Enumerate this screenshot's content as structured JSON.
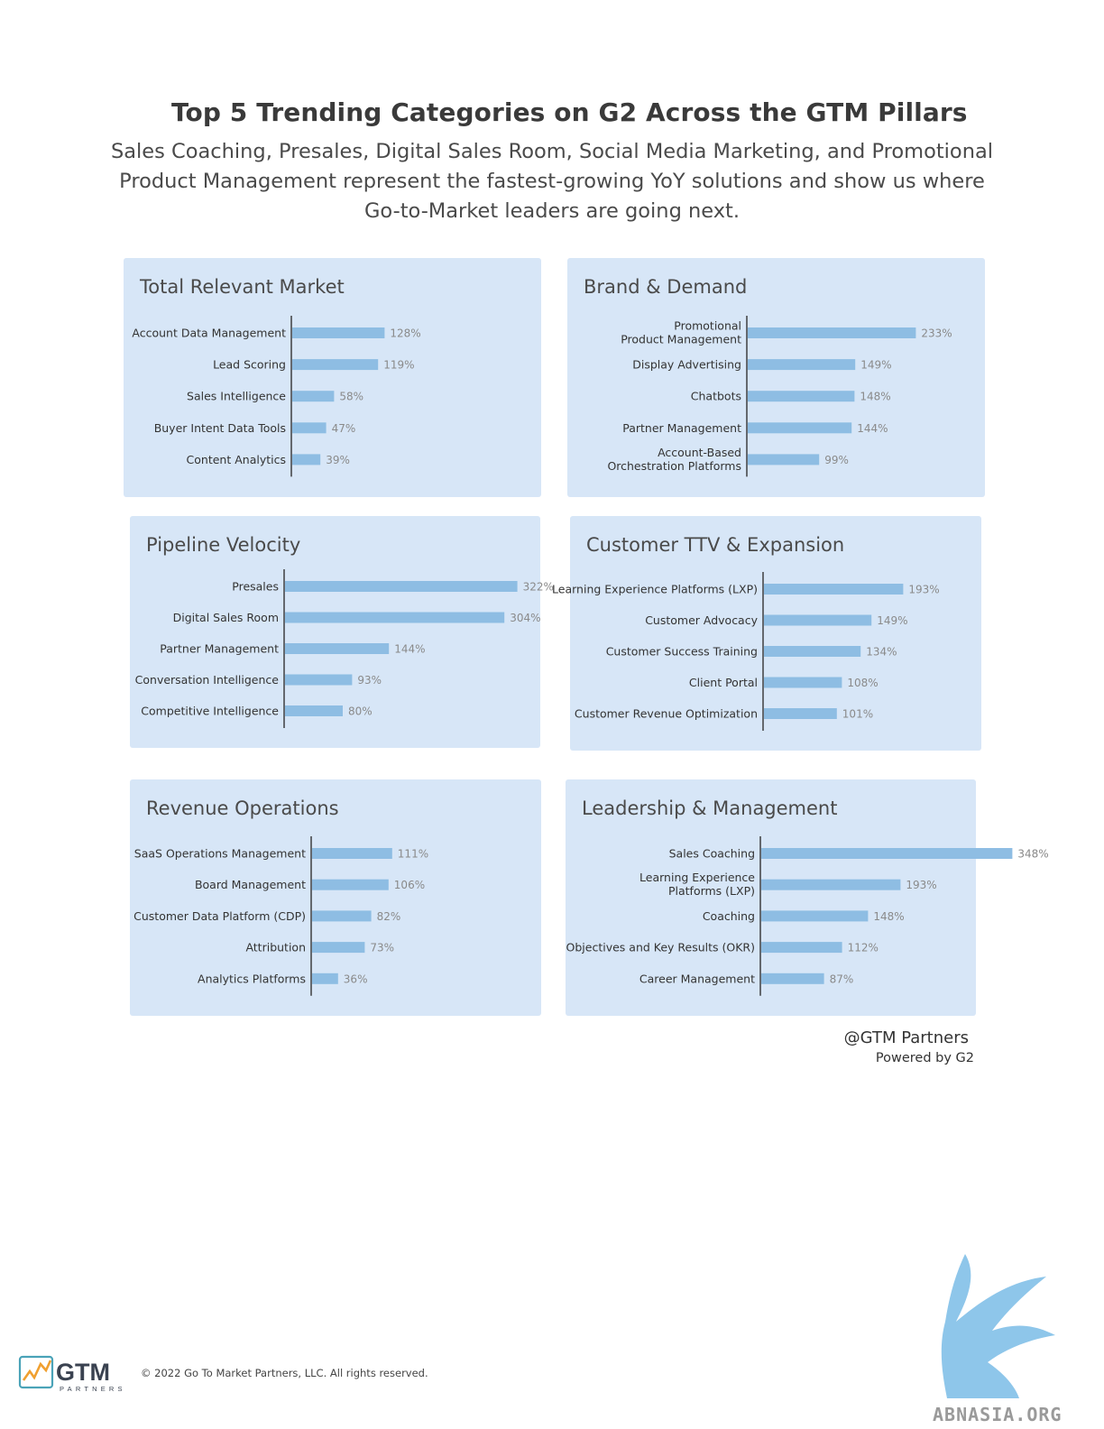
{
  "header": {
    "title": "Top 5 Trending Categories on G2 Across the GTM Pillars",
    "subtitle": "Sales Coaching, Presales, Digital Sales Room, Social Media Marketing, and Promotional Product Management represent the fastest-growing YoY solutions and show us where Go-to-Market leaders are going next."
  },
  "colors": {
    "panel_bg": "#d7e6f7",
    "bar": "#8ebde3",
    "axis": "#333333",
    "value_label": "#8a8a8a"
  },
  "chart_data": [
    {
      "type": "bar",
      "orientation": "horizontal",
      "title": "Total Relevant Market",
      "categories": [
        "Account Data Management",
        "Lead Scoring",
        "Sales Intelligence",
        "Buyer Intent Data Tools",
        "Content Analytics"
      ],
      "values": [
        128,
        119,
        58,
        47,
        39
      ],
      "value_labels": [
        "128%",
        "119%",
        "58%",
        "47%",
        "39%"
      ],
      "unit": "%",
      "xlim": [
        0,
        400
      ],
      "grid": false,
      "legend": "none"
    },
    {
      "type": "bar",
      "orientation": "horizontal",
      "title": "Brand & Demand",
      "categories": [
        "Promotional Product Management",
        "Display Advertising",
        "Chatbots",
        "Partner Management",
        "Account-Based Orchestration Platforms"
      ],
      "values": [
        233,
        149,
        148,
        144,
        99
      ],
      "value_labels": [
        "233%",
        "149%",
        "148%",
        "144%",
        "99%"
      ],
      "unit": "%",
      "xlim": [
        0,
        400
      ],
      "grid": false,
      "legend": "none"
    },
    {
      "type": "bar",
      "orientation": "horizontal",
      "title": "Pipeline Velocity",
      "categories": [
        "Presales",
        "Digital Sales Room",
        "Partner Management",
        "Conversation Intelligence",
        "Competitive Intelligence"
      ],
      "values": [
        322,
        304,
        144,
        93,
        80
      ],
      "value_labels": [
        "322%",
        "304%",
        "144%",
        "93%",
        "80%"
      ],
      "unit": "%",
      "xlim": [
        0,
        400
      ],
      "grid": false,
      "legend": "none"
    },
    {
      "type": "bar",
      "orientation": "horizontal",
      "title": "Customer TTV & Expansion",
      "categories": [
        "Learning Experience Platforms (LXP)",
        "Customer Advocacy",
        "Customer Success Training",
        "Client Portal",
        "Customer Revenue Optimization"
      ],
      "values": [
        193,
        149,
        134,
        108,
        101
      ],
      "value_labels": [
        "193%",
        "149%",
        "134%",
        "108%",
        "101%"
      ],
      "unit": "%",
      "xlim": [
        0,
        400
      ],
      "grid": false,
      "legend": "none"
    },
    {
      "type": "bar",
      "orientation": "horizontal",
      "title": "Revenue Operations",
      "categories": [
        "SaaS Operations Management",
        "Board Management",
        "Customer Data Platform (CDP)",
        "Attribution",
        "Analytics Platforms"
      ],
      "values": [
        111,
        106,
        82,
        73,
        36
      ],
      "value_labels": [
        "111%",
        "106%",
        "82%",
        "73%",
        "36%"
      ],
      "unit": "%",
      "xlim": [
        0,
        400
      ],
      "grid": false,
      "legend": "none"
    },
    {
      "type": "bar",
      "orientation": "horizontal",
      "title": "Leadership & Management",
      "categories": [
        "Sales Coaching",
        "Learning Experience Platforms (LXP)",
        "Coaching",
        "Objectives and Key Results (OKR)",
        "Career Management"
      ],
      "values": [
        348,
        193,
        148,
        112,
        87
      ],
      "value_labels": [
        "348%",
        "193%",
        "148%",
        "112%",
        "87%"
      ],
      "unit": "%",
      "xlim": [
        0,
        400
      ],
      "grid": false,
      "legend": "none"
    }
  ],
  "source": {
    "handle": "@GTM Partners",
    "powered_by": "Powered by G2"
  },
  "footer": {
    "logo_text": "GTM",
    "logo_sub": "PARTNERS",
    "copyright": "© 2022 Go To Market Partners, LLC. All rights reserved.",
    "watermark": "ABNASIA.ORG"
  }
}
